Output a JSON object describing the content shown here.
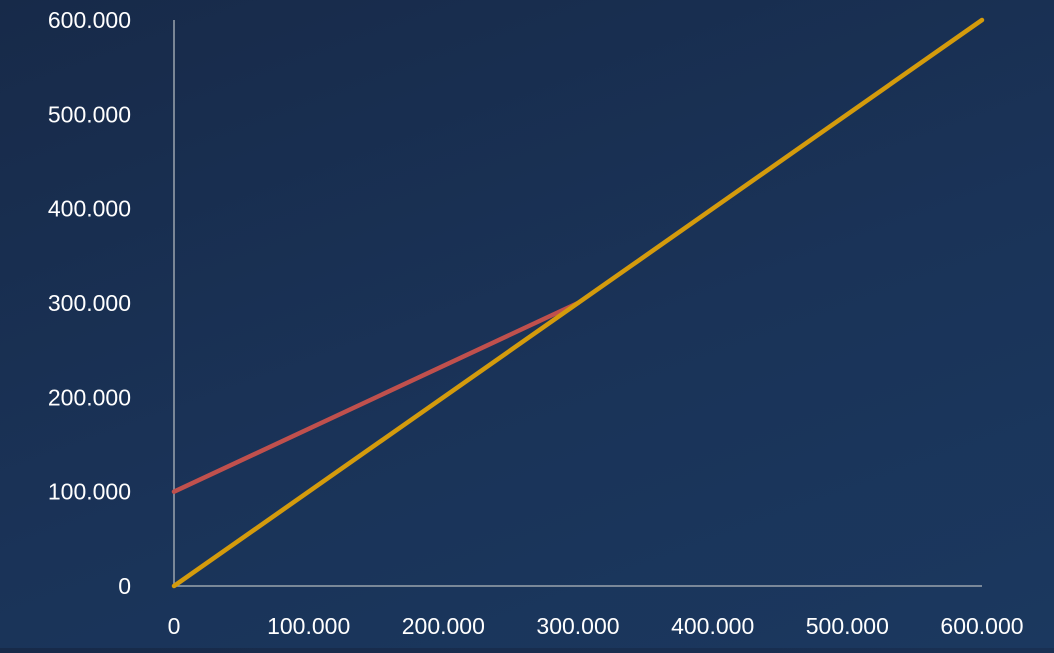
{
  "chart_data": {
    "type": "line",
    "title": "",
    "xlabel": "",
    "ylabel": "",
    "xlim": [
      0,
      600000
    ],
    "ylim": [
      0,
      600000
    ],
    "x_ticks": [
      0,
      100000,
      200000,
      300000,
      400000,
      500000,
      600000
    ],
    "y_ticks": [
      0,
      100000,
      200000,
      300000,
      400000,
      500000,
      600000
    ],
    "x_tick_labels": [
      "0",
      "100.000",
      "200.000",
      "300.000",
      "400.000",
      "500.000",
      "600.000"
    ],
    "y_tick_labels": [
      "0",
      "100.000",
      "200.000",
      "300.000",
      "400.000",
      "500.000",
      "600.000"
    ],
    "grid": false,
    "legend": "none",
    "series": [
      {
        "color": "#c0504d",
        "x": [
          0,
          300000
        ],
        "y": [
          100000,
          300000
        ]
      },
      {
        "color": "#d49b0c",
        "x": [
          0,
          600000
        ],
        "y": [
          0,
          600000
        ]
      }
    ],
    "axis_color": "#9aa3ad",
    "text_color": "#ffffff"
  }
}
